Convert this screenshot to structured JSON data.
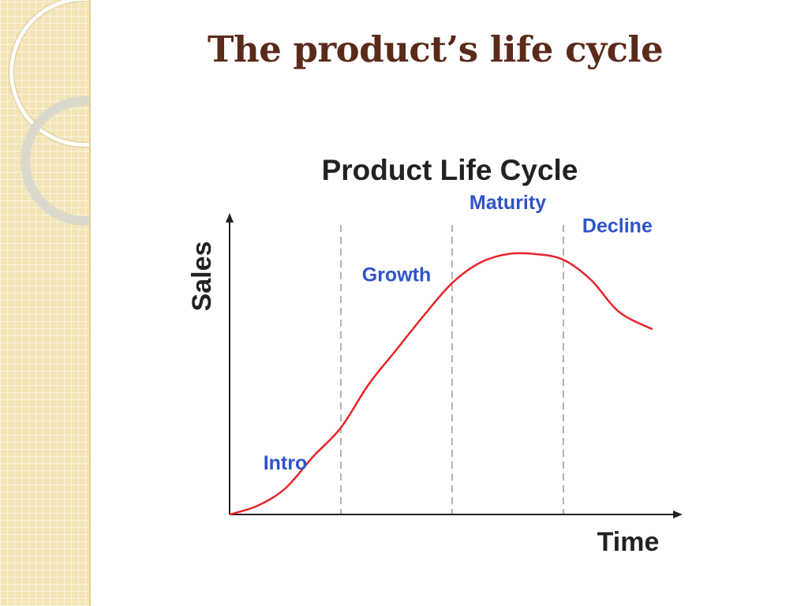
{
  "slide": {
    "title": "The product’s life cycle"
  },
  "colors": {
    "curve": "#e8232a",
    "stage_label": "#2f54c8",
    "title": "#5a2a1a",
    "axis": "#222222",
    "divider": "#999999"
  },
  "chart_data": {
    "type": "line",
    "title": "Product Life Cycle",
    "xlabel": "Time",
    "ylabel": "Sales",
    "grid": false,
    "xlim": [
      0,
      4
    ],
    "ylim": [
      0,
      1
    ],
    "stages": [
      {
        "label": "Intro",
        "start": 0,
        "end": 1
      },
      {
        "label": "Growth",
        "start": 1,
        "end": 2
      },
      {
        "label": "Maturity",
        "start": 2,
        "end": 3
      },
      {
        "label": "Decline",
        "start": 3,
        "end": 3.8
      }
    ],
    "series": [
      {
        "x": [
          0,
          0.25,
          0.5,
          0.75,
          1.0,
          1.25,
          1.5,
          1.75,
          2.0,
          2.25,
          2.5,
          2.75,
          3.0,
          3.25,
          3.5,
          3.8
        ],
        "y": [
          0.0,
          0.03,
          0.09,
          0.2,
          0.3,
          0.45,
          0.57,
          0.69,
          0.8,
          0.87,
          0.9,
          0.9,
          0.88,
          0.81,
          0.7,
          0.64
        ]
      }
    ]
  }
}
